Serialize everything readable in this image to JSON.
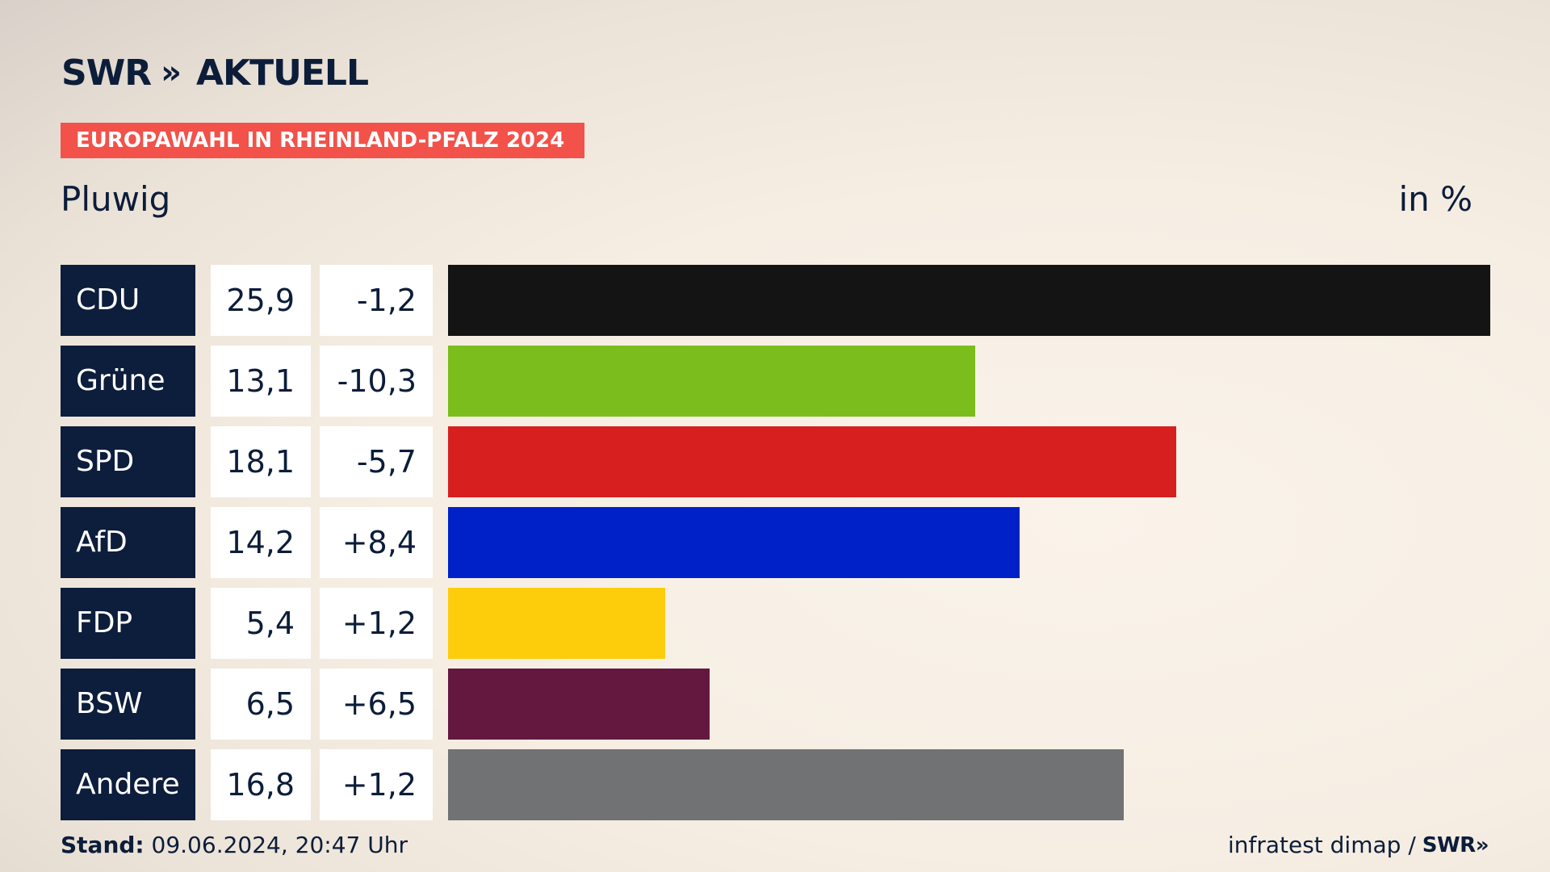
{
  "brand": {
    "logo_text": "SWR",
    "logo_chevrons": "»",
    "logo_suffix": "AKTUELL"
  },
  "banner": "EUROPAWAHL IN RHEINLAND-PFALZ 2024",
  "subtitle": "Pluwig",
  "unit": "in %",
  "chart_data": {
    "type": "bar",
    "orientation": "horizontal",
    "categories": [
      "CDU",
      "Grüne",
      "SPD",
      "AfD",
      "FDP",
      "BSW",
      "Andere"
    ],
    "values": [
      25.9,
      13.1,
      18.1,
      14.2,
      5.4,
      6.5,
      16.8
    ],
    "value_labels": [
      "25,9",
      "13,1",
      "18,1",
      "14,2",
      "5,4",
      "6,5",
      "16,8"
    ],
    "diff_labels": [
      "-1,2",
      "-10,3",
      "-5,7",
      "+8,4",
      "+1,2",
      "+6,5",
      "+1,2"
    ],
    "colors": [
      "#141414",
      "#7abd1c",
      "#d71f1f",
      "#0021c8",
      "#fdcd0b",
      "#641840",
      "#717274"
    ],
    "xlim": [
      0,
      25.9
    ],
    "title": "",
    "xlabel": "",
    "ylabel": ""
  },
  "footer": {
    "stand_label": "Stand:",
    "stand_value": "09.06.2024, 20:47 Uhr",
    "source": "infratest dimap /",
    "source_logo": "SWR",
    "source_logo_chevrons": "»"
  }
}
